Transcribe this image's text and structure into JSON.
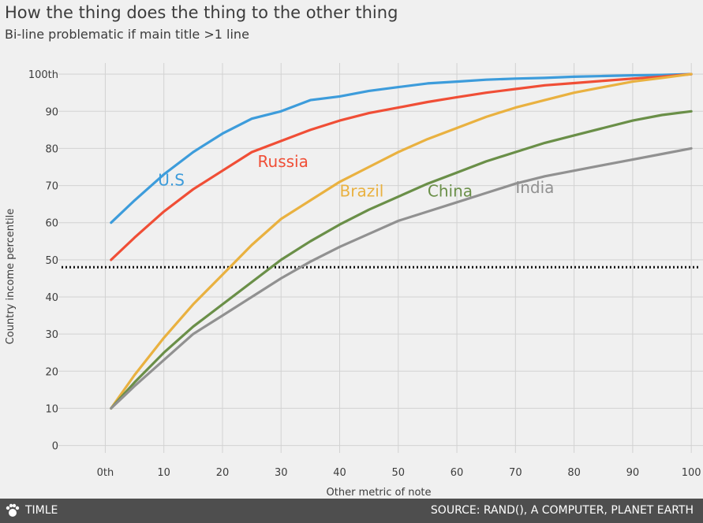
{
  "title": "How the thing does the thing to the other thing",
  "subtitle": "Bi-line problematic if main title >1 line",
  "footer": {
    "left": "TIMLE",
    "right": "SOURCE: RAND(), A COMPUTER, PLANET EARTH"
  },
  "colors": {
    "background": "#f0f0f0",
    "grid": "#d2d2d2",
    "footer": "#4e4e4e",
    "reference_line": "#111111"
  },
  "chart_data": {
    "type": "line",
    "xlabel": "Other metric of note",
    "ylabel": "Country income percentile",
    "xlim": [
      -8,
      102
    ],
    "ylim": [
      -2,
      103
    ],
    "x_ticks": [
      0,
      10,
      20,
      30,
      40,
      50,
      60,
      70,
      80,
      90,
      100
    ],
    "x_tick_labels": [
      "0th",
      "10",
      "20",
      "30",
      "40",
      "50",
      "60",
      "70",
      "80",
      "90",
      "100"
    ],
    "y_ticks": [
      0,
      10,
      20,
      30,
      40,
      50,
      60,
      70,
      80,
      90,
      100
    ],
    "y_tick_labels": [
      "0",
      "10",
      "20",
      "30",
      "40",
      "50",
      "60",
      "70",
      "80",
      "90",
      "100th"
    ],
    "grid": true,
    "reference_line": {
      "y": 48,
      "style": "dotted"
    },
    "x": [
      1,
      5,
      10,
      15,
      20,
      25,
      30,
      35,
      40,
      45,
      50,
      55,
      60,
      65,
      70,
      75,
      80,
      85,
      90,
      95,
      100
    ],
    "series": [
      {
        "name": "U.S",
        "color": "#3d9cdb",
        "label_at": [
          9,
          70
        ],
        "values": [
          60,
          66,
          73,
          79,
          84,
          88,
          90,
          93,
          94,
          95.5,
          96.5,
          97.5,
          98,
          98.5,
          98.8,
          99,
          99.3,
          99.5,
          99.7,
          99.8,
          100
        ]
      },
      {
        "name": "Russia",
        "color": "#f04e36",
        "label_at": [
          26,
          75
        ],
        "values": [
          50,
          56,
          63,
          69,
          74,
          79,
          82,
          85,
          87.5,
          89.5,
          91,
          92.5,
          93.8,
          95,
          96,
          97,
          97.6,
          98.2,
          98.8,
          99.3,
          100
        ]
      },
      {
        "name": "Brazil",
        "color": "#e9b140",
        "label_at": [
          40,
          67
        ],
        "values": [
          10,
          19,
          29,
          38,
          46,
          54,
          61,
          66,
          71,
          75,
          79,
          82.5,
          85.5,
          88.5,
          91,
          93,
          95,
          96.5,
          98,
          99,
          100
        ]
      },
      {
        "name": "China",
        "color": "#6a8f48",
        "label_at": [
          55,
          67
        ],
        "values": [
          10,
          17,
          25,
          32,
          38,
          44,
          50,
          55,
          59.5,
          63.5,
          67,
          70.5,
          73.5,
          76.5,
          79,
          81.5,
          83.5,
          85.5,
          87.5,
          89,
          90
        ]
      },
      {
        "name": "India",
        "color": "#919191",
        "label_at": [
          70,
          68
        ],
        "values": [
          10,
          16,
          23,
          30,
          35,
          40,
          45,
          49.5,
          53.5,
          57,
          60.5,
          63,
          65.5,
          68,
          70.5,
          72.5,
          74,
          75.5,
          77,
          78.5,
          80
        ]
      }
    ]
  }
}
